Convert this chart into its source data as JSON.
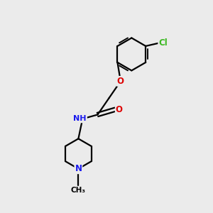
{
  "bg_color": "#ebebeb",
  "bond_color": "#000000",
  "bond_width": 1.6,
  "atom_colors": {
    "C": "#000000",
    "H": "#6fa8a8",
    "N": "#1a1aee",
    "O": "#dd0000",
    "Cl": "#3ab820"
  },
  "font_size": 8.5,
  "ring_r": 0.78,
  "pip_r": 0.72
}
